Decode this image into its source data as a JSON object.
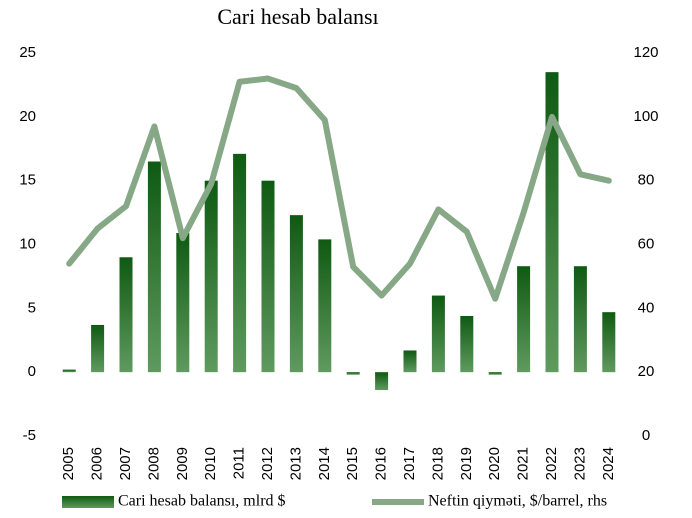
{
  "chart_data": {
    "type": "bar-line",
    "title": "Cari hesab balansı",
    "categories": [
      "2005",
      "2006",
      "2007",
      "2008",
      "2009",
      "2010",
      "2011",
      "2012",
      "2013",
      "2014",
      "2015",
      "2016",
      "2017",
      "2018",
      "2019",
      "2020",
      "2021",
      "2022",
      "2023",
      "2024"
    ],
    "series": [
      {
        "name": "Cari hesab balansı, mlrd $",
        "type": "bar",
        "color": "#1e6b1e",
        "axis": "y",
        "values": [
          0.2,
          3.7,
          9.0,
          16.5,
          10.9,
          15.0,
          17.1,
          15.0,
          12.3,
          10.4,
          -0.2,
          -1.4,
          1.7,
          6.0,
          4.4,
          -0.2,
          8.3,
          23.5,
          8.3,
          4.7
        ]
      },
      {
        "name": "Neftin qiymәti, $/barrel, rhs",
        "type": "line",
        "color": "#86a886",
        "axis": "y2",
        "values": [
          54,
          65,
          72,
          97,
          62,
          79,
          111,
          112,
          109,
          99,
          53,
          44,
          54,
          71,
          64,
          43,
          70,
          100,
          82,
          80
        ]
      }
    ],
    "ylim": [
      -5,
      25
    ],
    "yticks": [
      -5,
      0,
      5,
      10,
      15,
      20,
      25
    ],
    "y2lim": [
      0,
      120
    ],
    "y2ticks": [
      0,
      20,
      40,
      60,
      80,
      100,
      120
    ]
  }
}
